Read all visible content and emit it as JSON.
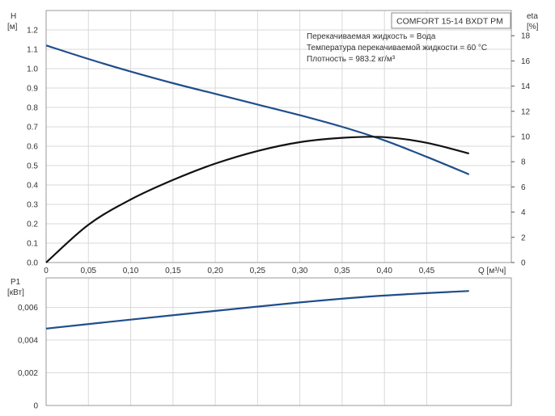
{
  "chart_data": [
    {
      "type": "line",
      "title": "COMFORT 15-14 BXDT PM",
      "annotations": [
        "Перекачиваемая жидкость = Вода",
        "Температура перекачиваемой жидкости = 60 °C",
        "Плотность = 983.2 кг/м³"
      ],
      "ylabel": "H",
      "yunit": "[м]",
      "y2label": "eta",
      "y2unit": "[%]",
      "xlabel": "Q [м³/ч]",
      "xlim": [
        0,
        0.55
      ],
      "ylim": [
        0,
        1.3
      ],
      "y2lim": [
        0,
        20
      ],
      "x_ticks": [
        "0",
        "0,05",
        "0,10",
        "0,15",
        "0,20",
        "0,25",
        "0,30",
        "0,35",
        "0,40",
        "0,45"
      ],
      "y_ticks": [
        "0.0",
        "0.1",
        "0.2",
        "0.3",
        "0.4",
        "0.5",
        "0.6",
        "0.7",
        "0.8",
        "0.9",
        "1.0",
        "1.1",
        "1.2"
      ],
      "y2_ticks": [
        "0",
        "2",
        "4",
        "6",
        "8",
        "10",
        "12",
        "14",
        "16",
        "18"
      ],
      "grid": true,
      "series": [
        {
          "name": "H",
          "axis": "left",
          "color": "#1f4e8c",
          "x": [
            0,
            0.05,
            0.1,
            0.15,
            0.2,
            0.25,
            0.3,
            0.35,
            0.4,
            0.45,
            0.5
          ],
          "y": [
            1.12,
            1.05,
            0.985,
            0.925,
            0.87,
            0.815,
            0.76,
            0.7,
            0.63,
            0.545,
            0.455
          ]
        },
        {
          "name": "eta",
          "axis": "right",
          "color": "#111111",
          "x": [
            0,
            0.05,
            0.1,
            0.15,
            0.2,
            0.25,
            0.3,
            0.35,
            0.4,
            0.45,
            0.5
          ],
          "y": [
            0,
            3.0,
            5.0,
            6.55,
            7.85,
            8.85,
            9.55,
            9.9,
            9.95,
            9.5,
            8.65
          ]
        }
      ]
    },
    {
      "type": "line",
      "ylabel": "P1",
      "yunit": "[кВт]",
      "xlim": [
        0,
        0.55
      ],
      "ylim": [
        0,
        0.0078
      ],
      "y_ticks": [
        "0",
        "0,002",
        "0,004",
        "0,006"
      ],
      "grid": true,
      "series": [
        {
          "name": "P1",
          "axis": "left",
          "color": "#1f4e8c",
          "x": [
            0,
            0.1,
            0.2,
            0.3,
            0.4,
            0.5
          ],
          "y": [
            0.0047,
            0.00525,
            0.00578,
            0.0063,
            0.00672,
            0.007
          ]
        }
      ]
    }
  ]
}
